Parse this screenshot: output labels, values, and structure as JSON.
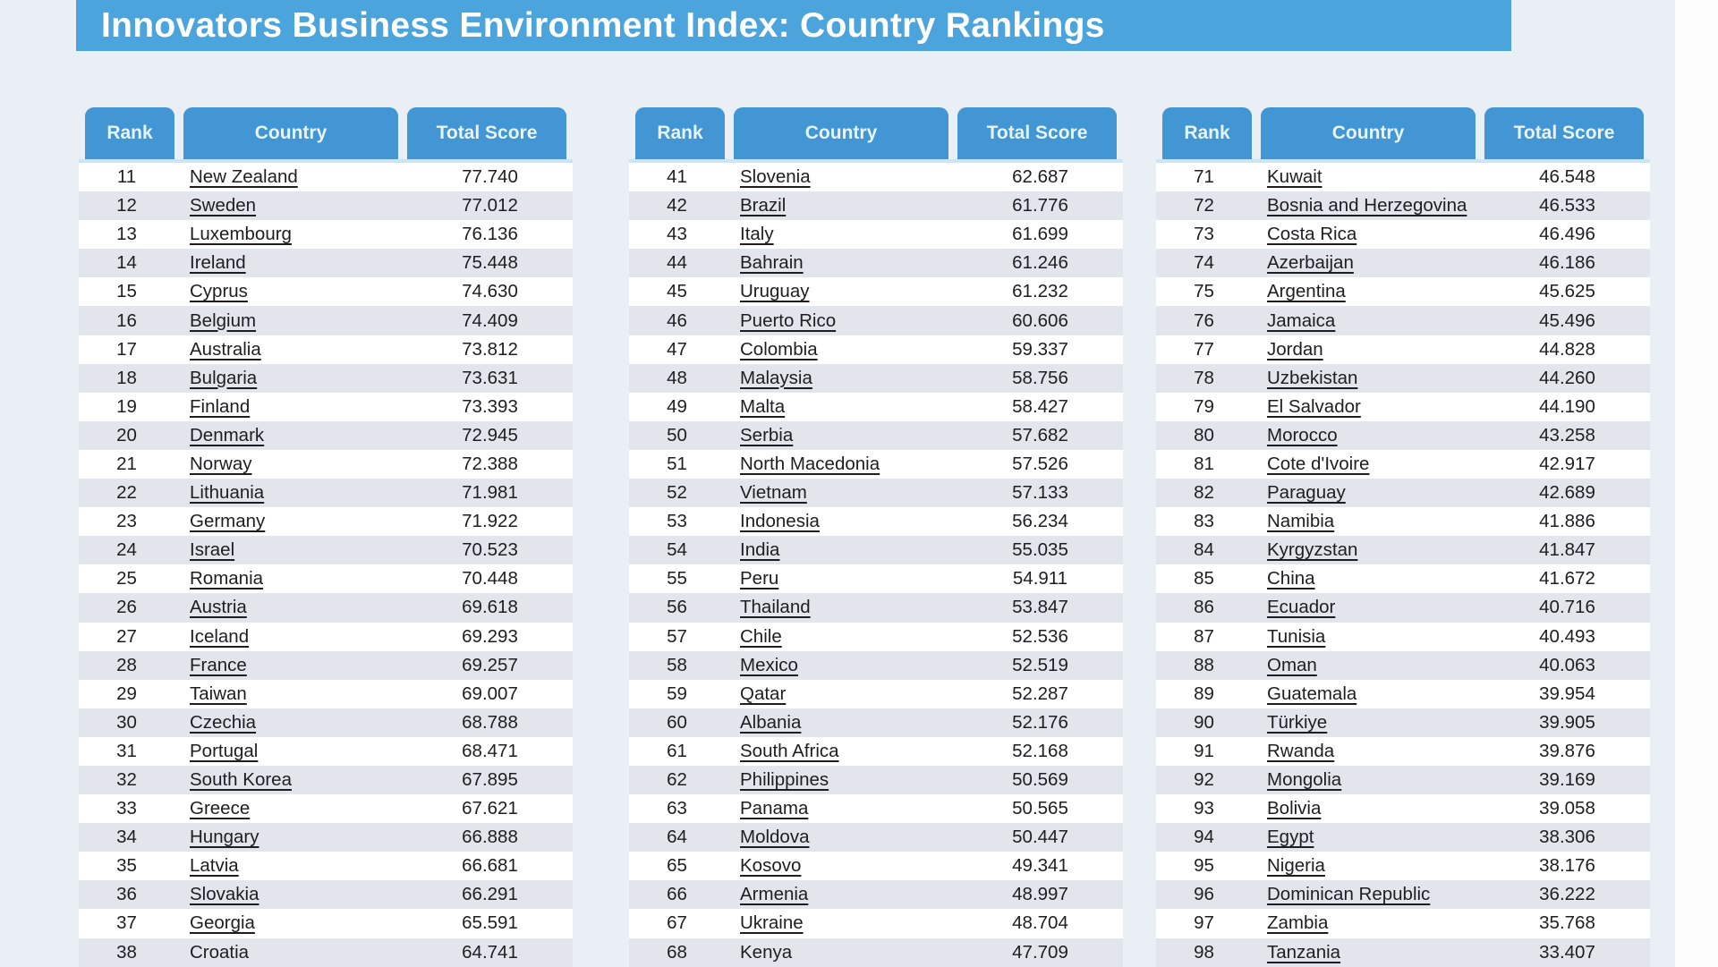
{
  "title": "Innovators Business Environment Index: Country Rankings",
  "colors": {
    "title_bar_bg": "#4ba4db",
    "header_bg": "#4296d3",
    "header_text": "#e6f4fd",
    "row_alt_bg": "#e2e5eb",
    "page_bg": "#eaeef5",
    "text": "#1e1e20"
  },
  "not_underlined": [
    "Croatia",
    "Kenya"
  ],
  "chart_data": {
    "type": "table",
    "title": "Innovators Business Environment Index: Country Rankings",
    "columns": [
      "Rank",
      "Country",
      "Total Score"
    ],
    "tables": [
      {
        "rows": [
          [
            "11",
            "New Zealand",
            "77.740"
          ],
          [
            "12",
            "Sweden",
            "77.012"
          ],
          [
            "13",
            "Luxembourg",
            "76.136"
          ],
          [
            "14",
            "Ireland",
            "75.448"
          ],
          [
            "15",
            "Cyprus",
            "74.630"
          ],
          [
            "16",
            "Belgium",
            "74.409"
          ],
          [
            "17",
            "Australia",
            "73.812"
          ],
          [
            "18",
            "Bulgaria",
            "73.631"
          ],
          [
            "19",
            "Finland",
            "73.393"
          ],
          [
            "20",
            "Denmark",
            "72.945"
          ],
          [
            "21",
            "Norway",
            "72.388"
          ],
          [
            "22",
            "Lithuania",
            "71.981"
          ],
          [
            "23",
            "Germany",
            "71.922"
          ],
          [
            "24",
            "Israel",
            "70.523"
          ],
          [
            "25",
            "Romania",
            "70.448"
          ],
          [
            "26",
            "Austria",
            "69.618"
          ],
          [
            "27",
            "Iceland",
            "69.293"
          ],
          [
            "28",
            "France",
            "69.257"
          ],
          [
            "29",
            "Taiwan",
            "69.007"
          ],
          [
            "30",
            "Czechia",
            "68.788"
          ],
          [
            "31",
            "Portugal",
            "68.471"
          ],
          [
            "32",
            "South Korea",
            "67.895"
          ],
          [
            "33",
            "Greece",
            "67.621"
          ],
          [
            "34",
            "Hungary",
            "66.888"
          ],
          [
            "35",
            "Latvia",
            "66.681"
          ],
          [
            "36",
            "Slovakia",
            "66.291"
          ],
          [
            "37",
            "Georgia",
            "65.591"
          ],
          [
            "38",
            "Croatia",
            "64.741"
          ]
        ]
      },
      {
        "rows": [
          [
            "41",
            "Slovenia",
            "62.687"
          ],
          [
            "42",
            "Brazil",
            "61.776"
          ],
          [
            "43",
            "Italy",
            "61.699"
          ],
          [
            "44",
            "Bahrain",
            "61.246"
          ],
          [
            "45",
            "Uruguay",
            "61.232"
          ],
          [
            "46",
            "Puerto Rico",
            "60.606"
          ],
          [
            "47",
            "Colombia",
            "59.337"
          ],
          [
            "48",
            "Malaysia",
            "58.756"
          ],
          [
            "49",
            "Malta",
            "58.427"
          ],
          [
            "50",
            "Serbia",
            "57.682"
          ],
          [
            "51",
            "North Macedonia",
            "57.526"
          ],
          [
            "52",
            "Vietnam",
            "57.133"
          ],
          [
            "53",
            "Indonesia",
            "56.234"
          ],
          [
            "54",
            "India",
            "55.035"
          ],
          [
            "55",
            "Peru",
            "54.911"
          ],
          [
            "56",
            "Thailand",
            "53.847"
          ],
          [
            "57",
            "Chile",
            "52.536"
          ],
          [
            "58",
            "Mexico",
            "52.519"
          ],
          [
            "59",
            "Qatar",
            "52.287"
          ],
          [
            "60",
            "Albania",
            "52.176"
          ],
          [
            "61",
            "South Africa",
            "52.168"
          ],
          [
            "62",
            "Philippines",
            "50.569"
          ],
          [
            "63",
            "Panama",
            "50.565"
          ],
          [
            "64",
            "Moldova",
            "50.447"
          ],
          [
            "65",
            "Kosovo",
            "49.341"
          ],
          [
            "66",
            "Armenia",
            "48.997"
          ],
          [
            "67",
            "Ukraine",
            "48.704"
          ],
          [
            "68",
            "Kenya",
            "47.709"
          ]
        ]
      },
      {
        "rows": [
          [
            "71",
            "Kuwait",
            "46.548"
          ],
          [
            "72",
            "Bosnia and Herzegovina",
            "46.533"
          ],
          [
            "73",
            "Costa Rica",
            "46.496"
          ],
          [
            "74",
            "Azerbaijan",
            "46.186"
          ],
          [
            "75",
            "Argentina",
            "45.625"
          ],
          [
            "76",
            "Jamaica",
            "45.496"
          ],
          [
            "77",
            "Jordan",
            "44.828"
          ],
          [
            "78",
            "Uzbekistan",
            "44.260"
          ],
          [
            "79",
            "El Salvador",
            "44.190"
          ],
          [
            "80",
            "Morocco",
            "43.258"
          ],
          [
            "81",
            "Cote d'Ivoire",
            "42.917"
          ],
          [
            "82",
            "Paraguay",
            "42.689"
          ],
          [
            "83",
            "Namibia",
            "41.886"
          ],
          [
            "84",
            "Kyrgyzstan",
            "41.847"
          ],
          [
            "85",
            "China",
            "41.672"
          ],
          [
            "86",
            "Ecuador",
            "40.716"
          ],
          [
            "87",
            "Tunisia",
            "40.493"
          ],
          [
            "88",
            "Oman",
            "40.063"
          ],
          [
            "89",
            "Guatemala",
            "39.954"
          ],
          [
            "90",
            "Türkiye",
            "39.905"
          ],
          [
            "91",
            "Rwanda",
            "39.876"
          ],
          [
            "92",
            "Mongolia",
            "39.169"
          ],
          [
            "93",
            "Bolivia",
            "39.058"
          ],
          [
            "94",
            "Egypt",
            "38.306"
          ],
          [
            "95",
            "Nigeria",
            "38.176"
          ],
          [
            "96",
            "Dominican Republic",
            "36.222"
          ],
          [
            "97",
            "Zambia",
            "35.768"
          ],
          [
            "98",
            "Tanzania",
            "33.407"
          ]
        ]
      }
    ]
  }
}
